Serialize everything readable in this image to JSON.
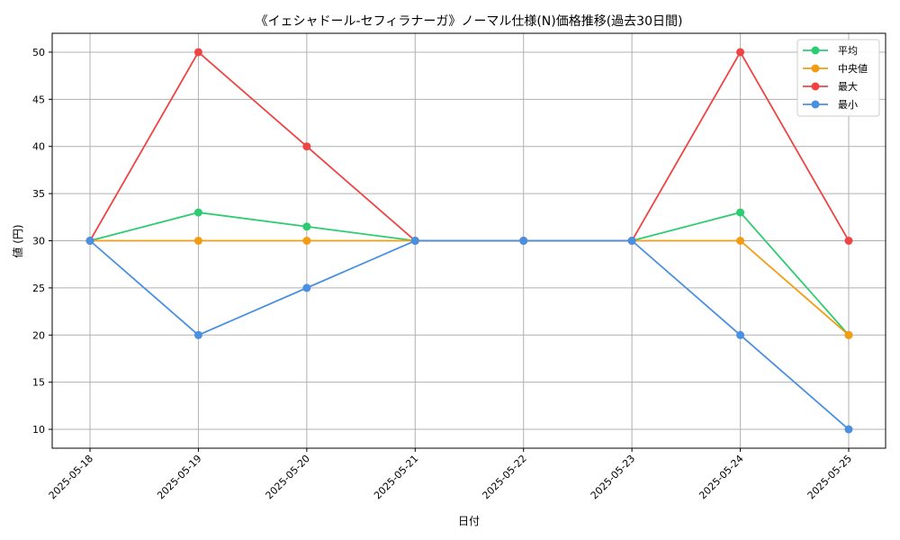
{
  "chart_data": {
    "type": "line",
    "title": "《イェシャドール-セフィラナーガ》ノーマル仕様(N)価格推移(過去30日間)",
    "xlabel": "日付",
    "ylabel": "値 (円)",
    "categories": [
      "2025-05-18",
      "2025-05-19",
      "2025-05-20",
      "2025-05-21",
      "2025-05-22",
      "2025-05-23",
      "2025-05-24",
      "2025-05-25"
    ],
    "ylim": [
      8,
      52
    ],
    "yticks": [
      10,
      15,
      20,
      25,
      30,
      35,
      40,
      45,
      50
    ],
    "grid": true,
    "legend_position": "top-right",
    "series": [
      {
        "name": "平均",
        "color": "#2ecc71",
        "values": [
          30,
          33,
          31.5,
          30,
          30,
          30,
          33,
          20
        ]
      },
      {
        "name": "中央値",
        "color": "#f39c12",
        "values": [
          30,
          30,
          30,
          30,
          30,
          30,
          30,
          20
        ]
      },
      {
        "name": "最大",
        "color": "#ef4444",
        "values": [
          30,
          50,
          40,
          30,
          30,
          30,
          50,
          30
        ]
      },
      {
        "name": "最小",
        "color": "#4a90e2",
        "values": [
          30,
          20,
          25,
          30,
          30,
          30,
          20,
          10
        ]
      }
    ]
  }
}
